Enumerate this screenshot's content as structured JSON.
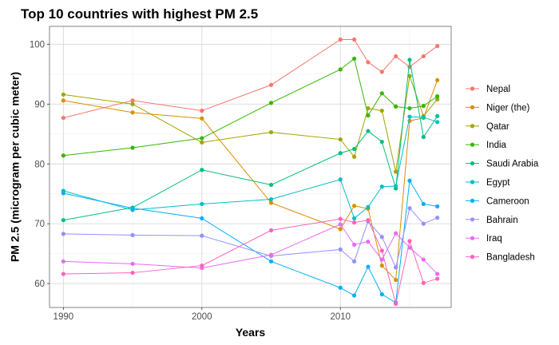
{
  "chart_data": {
    "type": "line",
    "title": "Top 10 countries with highest PM 2.5",
    "xlabel": "Years",
    "ylabel": "PM 2.5 (microgram per cubic meter)",
    "xlim": [
      1989,
      2018
    ],
    "ylim": [
      56,
      103
    ],
    "x_ticks": [
      1990,
      2000,
      2010
    ],
    "y_ticks": [
      60,
      70,
      80,
      90,
      100
    ],
    "grid": true,
    "legend_position": "right",
    "x": [
      1990,
      1995,
      2000,
      2005,
      2010,
      2011,
      2012,
      2013,
      2014,
      2015,
      2016,
      2017
    ],
    "series": [
      {
        "name": "Nepal",
        "color": "#F8766D",
        "values": [
          87.7,
          90.6,
          88.9,
          93.2,
          100.8,
          100.8,
          97.0,
          95.4,
          98.0,
          96.2,
          98.0,
          99.7
        ]
      },
      {
        "name": "Niger (the)",
        "color": "#D89000",
        "values": [
          90.6,
          88.6,
          87.6,
          73.5,
          69.1,
          73.0,
          72.5,
          63.0,
          60.6,
          87.2,
          87.7,
          94.0
        ]
      },
      {
        "name": "Qatar",
        "color": "#A3A500",
        "values": [
          91.6,
          90.0,
          83.6,
          85.3,
          84.1,
          81.2,
          89.3,
          88.9,
          78.7,
          94.7,
          88.0,
          90.8
        ]
      },
      {
        "name": "India",
        "color": "#39B600",
        "values": [
          81.4,
          82.7,
          84.3,
          90.2,
          95.8,
          97.6,
          88.1,
          91.8,
          89.6,
          89.3,
          89.7,
          91.3
        ]
      },
      {
        "name": "Saudi Arabia",
        "color": "#00BF7D",
        "values": [
          70.6,
          72.7,
          79.0,
          76.5,
          81.8,
          82.5,
          85.5,
          83.7,
          75.9,
          97.4,
          84.5,
          88.0
        ]
      },
      {
        "name": "Egypt",
        "color": "#00BFC4",
        "values": [
          75.5,
          72.3,
          73.3,
          74.1,
          77.4,
          70.9,
          72.8,
          76.2,
          76.3,
          87.9,
          87.8,
          87.0
        ]
      },
      {
        "name": "Cameroon",
        "color": "#00B0F6",
        "values": [
          75.1,
          72.6,
          70.9,
          63.7,
          59.3,
          58.0,
          62.8,
          58.2,
          56.8,
          77.2,
          73.3,
          72.9
        ]
      },
      {
        "name": "Bahrain",
        "color": "#9590FF",
        "values": [
          68.3,
          68.1,
          68.0,
          64.6,
          65.7,
          63.7,
          70.4,
          67.8,
          62.7,
          72.6,
          70.0,
          71.0
        ]
      },
      {
        "name": "Iraq",
        "color": "#E76BF3",
        "values": [
          63.7,
          63.3,
          62.6,
          64.8,
          69.9,
          66.5,
          67.0,
          64.0,
          68.4,
          66.0,
          64.0,
          61.6
        ]
      },
      {
        "name": "Bangladesh",
        "color": "#FF62BC",
        "values": [
          61.6,
          61.8,
          63.0,
          68.9,
          70.8,
          70.2,
          70.6,
          65.5,
          56.6,
          67.1,
          60.1,
          60.8
        ]
      }
    ]
  }
}
